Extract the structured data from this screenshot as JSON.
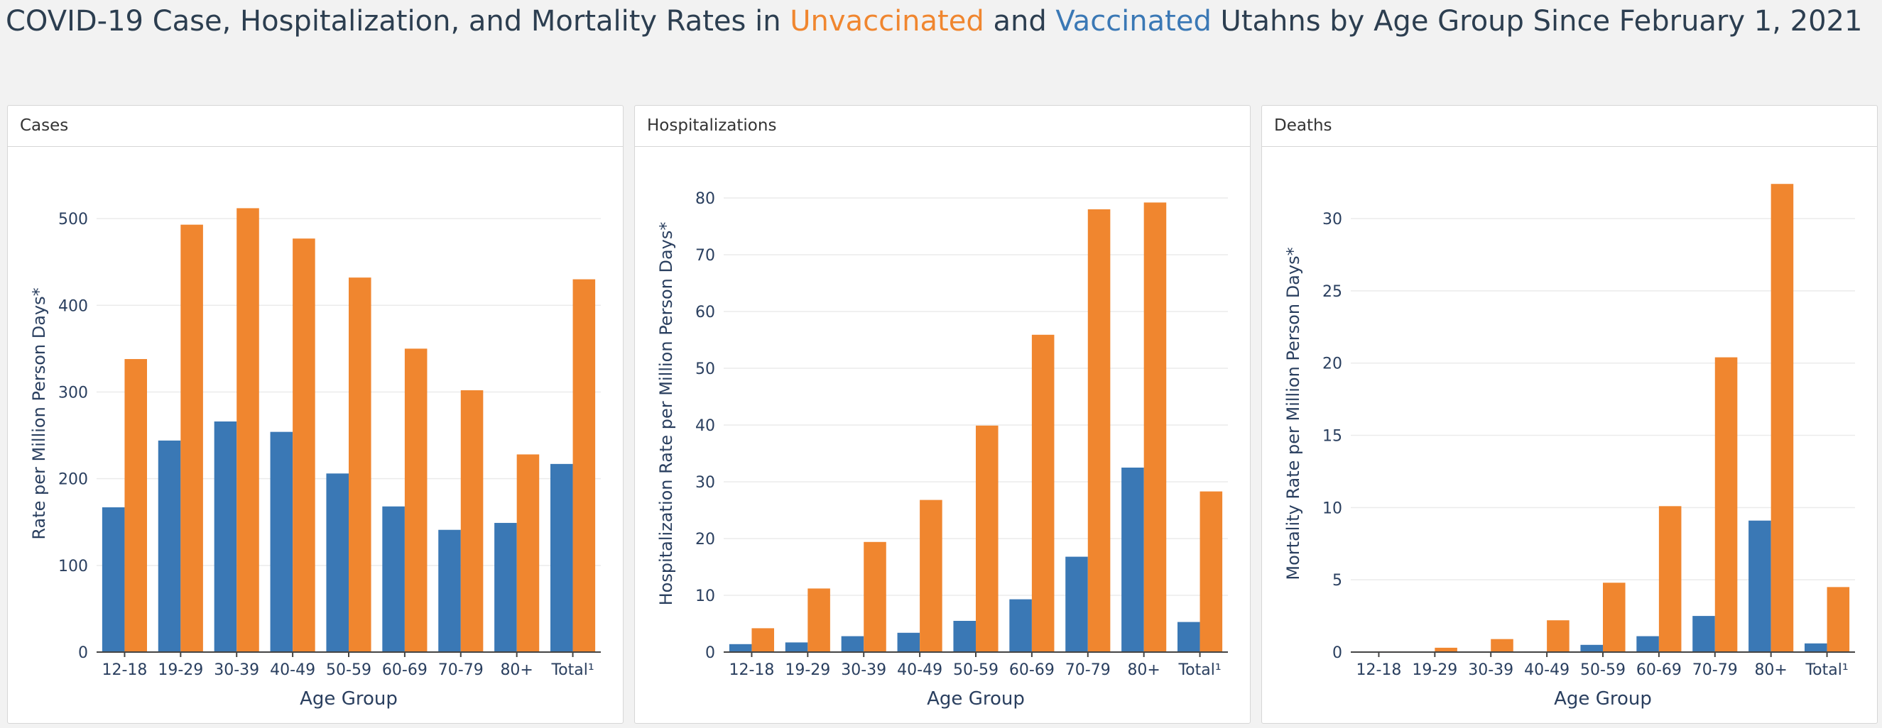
{
  "title": {
    "prefix": "COVID-19 Case, Hospitalization, and Mortality Rates in ",
    "unvaccinated": "Unvaccinated",
    "and": " and ",
    "vaccinated": "Vaccinated",
    "suffix": " Utahns by Age Group Since February 1, 2021"
  },
  "colors": {
    "vaccinated": "#3a78b5",
    "unvaccinated": "#f0862f"
  },
  "chart_data": [
    {
      "type": "bar",
      "panel_title": "Cases",
      "xlabel": "Age Group",
      "ylabel": "Rate per Million Person Days*",
      "categories": [
        "12-18",
        "19-29",
        "30-39",
        "40-49",
        "50-59",
        "60-69",
        "70-79",
        "80+",
        "Total¹"
      ],
      "series": [
        {
          "key": "vaccinated",
          "values": [
            167,
            244,
            266,
            254,
            206,
            168,
            141,
            149,
            217
          ]
        },
        {
          "key": "unvaccinated",
          "values": [
            338,
            493,
            512,
            477,
            432,
            350,
            302,
            228,
            430
          ]
        }
      ],
      "ylim": [
        0,
        550
      ],
      "yticks": [
        0,
        100,
        200,
        300,
        400,
        500
      ],
      "grid": true
    },
    {
      "type": "bar",
      "panel_title": "Hospitalizations",
      "xlabel": "Age Group",
      "ylabel": "Hospitalization Rate per Million Person Days*",
      "categories": [
        "12-18",
        "19-29",
        "30-39",
        "40-49",
        "50-59",
        "60-69",
        "70-79",
        "80+",
        "Total¹"
      ],
      "series": [
        {
          "key": "vaccinated",
          "values": [
            1.4,
            1.7,
            2.8,
            3.4,
            5.5,
            9.3,
            16.8,
            32.5,
            5.3
          ]
        },
        {
          "key": "unvaccinated",
          "values": [
            4.2,
            11.2,
            19.4,
            26.8,
            39.9,
            55.9,
            78.0,
            79.2,
            28.3
          ]
        }
      ],
      "ylim": [
        0,
        84
      ],
      "yticks": [
        0,
        10,
        20,
        30,
        40,
        50,
        60,
        70,
        80
      ],
      "grid": true
    },
    {
      "type": "bar",
      "panel_title": "Deaths",
      "xlabel": "Age Group",
      "ylabel": "Mortality Rate per Million Person Days*",
      "categories": [
        "12-18",
        "19-29",
        "30-39",
        "40-49",
        "50-59",
        "60-69",
        "70-79",
        "80+",
        "Total¹"
      ],
      "series": [
        {
          "key": "vaccinated",
          "values": [
            0,
            0,
            0,
            0.05,
            0.5,
            1.1,
            2.5,
            9.1,
            0.6
          ]
        },
        {
          "key": "unvaccinated",
          "values": [
            0.05,
            0.3,
            0.9,
            2.2,
            4.8,
            10.1,
            20.4,
            32.4,
            4.5
          ]
        }
      ],
      "ylim": [
        0,
        33
      ],
      "yticks": [
        0,
        5,
        10,
        15,
        20,
        25,
        30
      ],
      "grid": true
    }
  ]
}
